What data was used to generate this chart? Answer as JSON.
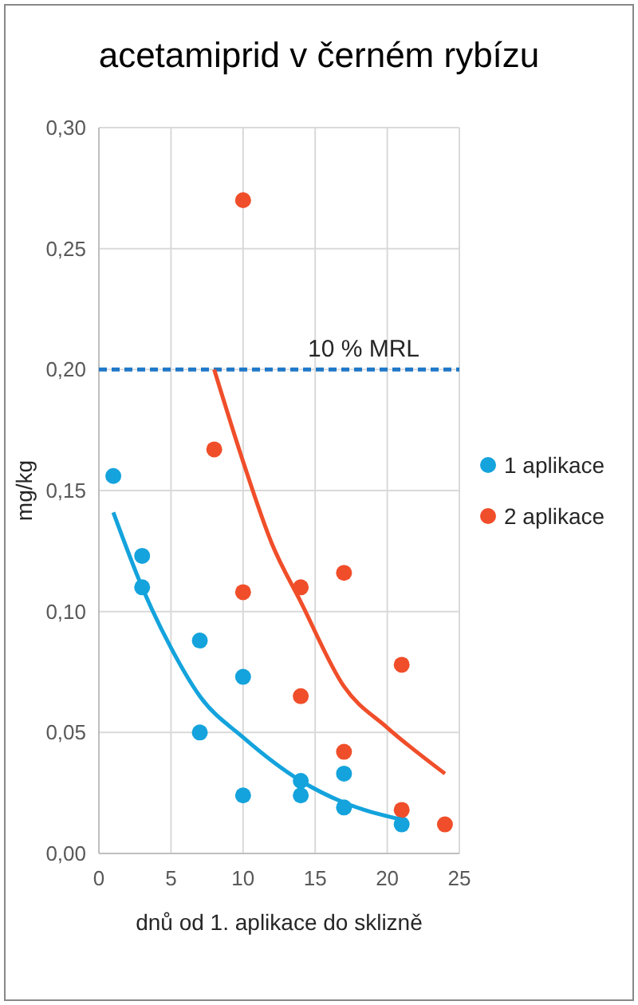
{
  "chart_data": {
    "type": "scatter",
    "title": "acetamiprid v černém rybízu",
    "xlabel": "dnů od 1. aplikace do sklizně",
    "ylabel": "mg/kg",
    "xlim": [
      0,
      25
    ],
    "xticks": [
      0,
      5,
      10,
      15,
      20,
      25
    ],
    "ylim": [
      0,
      0.3
    ],
    "yticks": [
      {
        "value": 0,
        "label": "0,00"
      },
      {
        "value": 0.05,
        "label": "0,05"
      },
      {
        "value": 0.1,
        "label": "0,10"
      },
      {
        "value": 0.15,
        "label": "0,15"
      },
      {
        "value": 0.2,
        "label": "0,20"
      },
      {
        "value": 0.25,
        "label": "0,25"
      },
      {
        "value": 0.3,
        "label": "0,30"
      }
    ],
    "grid": true,
    "legend": "right",
    "marker": "circle",
    "series": [
      {
        "name": "1 aplikace",
        "color": "#14a3dc",
        "x": [
          1,
          3,
          3,
          7,
          7,
          10,
          10,
          14,
          14,
          17,
          17,
          21
        ],
        "values": [
          0.156,
          0.123,
          0.11,
          0.088,
          0.05,
          0.073,
          0.024,
          0.03,
          0.024,
          0.033,
          0.019,
          0.012
        ]
      },
      {
        "name": "2 aplikace",
        "color": "#f04e2a",
        "x": [
          8,
          10,
          10,
          14,
          14,
          17,
          17,
          21,
          21,
          24
        ],
        "values": [
          0.167,
          0.27,
          0.108,
          0.11,
          0.065,
          0.116,
          0.042,
          0.078,
          0.018,
          0.012
        ]
      },
      {
        "type": "line",
        "marker": "none",
        "color": "#14a3dc",
        "x": [
          1,
          3,
          5,
          7,
          10,
          14,
          17,
          21
        ],
        "values": [
          0.141,
          0.11,
          0.085,
          0.065,
          0.048,
          0.03,
          0.021,
          0.014
        ]
      },
      {
        "type": "line",
        "marker": "none",
        "color": "#f04e2a",
        "x": [
          8,
          10,
          12,
          14,
          17,
          20,
          24
        ],
        "values": [
          0.2,
          0.162,
          0.128,
          0.104,
          0.069,
          0.052,
          0.033
        ]
      }
    ],
    "ref_lines": [
      {
        "axis": "y",
        "value": 0.2,
        "label": "10 % MRL",
        "color": "#1f78c8",
        "line_style": "dashed"
      }
    ]
  }
}
